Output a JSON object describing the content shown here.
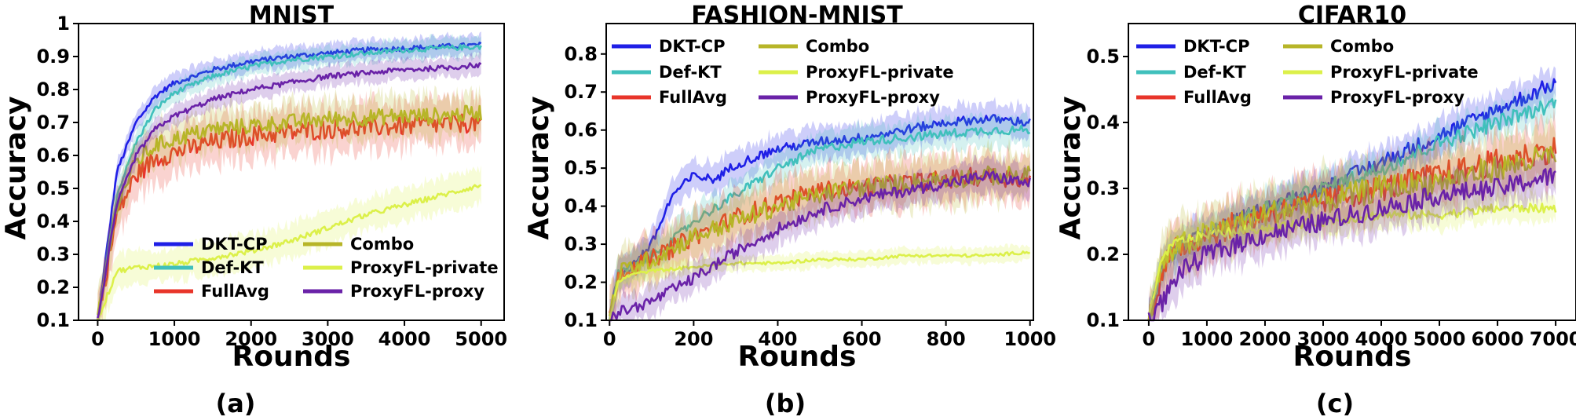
{
  "colors": {
    "DKT-CP": "#1f1fe6",
    "Def-KT": "#40c0bc",
    "FullAvg": "#e8352a",
    "Combo": "#b7b528",
    "ProxyFL-private": "#dcf04a",
    "ProxyFL-proxy": "#6a22a8"
  },
  "chart_data": [
    {
      "type": "line",
      "title": "MNIST",
      "subfigure_label": "(a)",
      "xlabel": "Rounds",
      "ylabel": "Accuracy",
      "xlim": [
        -250,
        5300
      ],
      "ylim": [
        0.1,
        1.0
      ],
      "xticks": [
        0,
        1000,
        2000,
        3000,
        4000,
        5000
      ],
      "yticks": [
        0.1,
        0.2,
        0.3,
        0.4,
        0.5,
        0.6,
        0.7,
        0.8,
        0.9,
        1.0
      ],
      "legend_position": "lower-right",
      "legend_columns": 2,
      "legend": [
        "DKT-CP",
        "Def-KT",
        "FullAvg",
        "Combo",
        "ProxyFL-private",
        "ProxyFL-proxy"
      ],
      "series": [
        {
          "name": "DKT-CP",
          "x": [
            0,
            250,
            500,
            750,
            1000,
            1500,
            2000,
            2500,
            3000,
            3500,
            4000,
            4500,
            5000
          ],
          "y": [
            0.1,
            0.55,
            0.7,
            0.78,
            0.82,
            0.86,
            0.885,
            0.9,
            0.91,
            0.92,
            0.925,
            0.93,
            0.935
          ],
          "noise": 0.008,
          "band": 0.03
        },
        {
          "name": "Def-KT",
          "x": [
            0,
            250,
            500,
            750,
            1000,
            1500,
            2000,
            2500,
            3000,
            3500,
            4000,
            4500,
            5000
          ],
          "y": [
            0.1,
            0.48,
            0.64,
            0.74,
            0.79,
            0.84,
            0.87,
            0.89,
            0.9,
            0.91,
            0.92,
            0.925,
            0.93
          ],
          "noise": 0.008,
          "band": 0.03
        },
        {
          "name": "FullAvg",
          "x": [
            0,
            250,
            500,
            750,
            1000,
            1500,
            2000,
            2500,
            3000,
            3500,
            4000,
            4500,
            5000
          ],
          "y": [
            0.1,
            0.42,
            0.54,
            0.59,
            0.61,
            0.64,
            0.66,
            0.67,
            0.68,
            0.685,
            0.69,
            0.695,
            0.7
          ],
          "noise": 0.03,
          "band": 0.07
        },
        {
          "name": "Combo",
          "x": [
            0,
            250,
            500,
            750,
            1000,
            1500,
            2000,
            2500,
            3000,
            3500,
            4000,
            4500,
            5000
          ],
          "y": [
            0.1,
            0.45,
            0.58,
            0.63,
            0.65,
            0.68,
            0.69,
            0.7,
            0.71,
            0.715,
            0.72,
            0.72,
            0.73
          ],
          "noise": 0.025,
          "band": 0.06
        },
        {
          "name": "ProxyFL-private",
          "x": [
            0,
            250,
            500,
            1000,
            1500,
            2000,
            2500,
            3000,
            3500,
            4000,
            4500,
            5000
          ],
          "y": [
            0.1,
            0.25,
            0.26,
            0.27,
            0.29,
            0.31,
            0.34,
            0.38,
            0.42,
            0.45,
            0.48,
            0.51
          ],
          "noise": 0.008,
          "band": 0.05
        },
        {
          "name": "ProxyFL-proxy",
          "x": [
            0,
            250,
            500,
            750,
            1000,
            1500,
            2000,
            2500,
            3000,
            3500,
            4000,
            4500,
            5000
          ],
          "y": [
            0.1,
            0.45,
            0.6,
            0.68,
            0.72,
            0.77,
            0.8,
            0.82,
            0.84,
            0.85,
            0.86,
            0.865,
            0.875
          ],
          "noise": 0.008,
          "band": 0.03
        }
      ]
    },
    {
      "type": "line",
      "title": "FASHION-MNIST",
      "subfigure_label": "(b)",
      "xlabel": "Rounds",
      "ylabel": "Accuracy",
      "xlim": [
        -8,
        1008
      ],
      "ylim": [
        0.1,
        0.88
      ],
      "xticks": [
        0,
        200,
        400,
        600,
        800,
        1000
      ],
      "yticks": [
        0.1,
        0.2,
        0.3,
        0.4,
        0.5,
        0.6,
        0.7,
        0.8
      ],
      "legend_position": "top-left",
      "legend_columns": 2,
      "legend": [
        "DKT-CP",
        "Def-KT",
        "FullAvg",
        "Combo",
        "ProxyFL-private",
        "ProxyFL-proxy"
      ],
      "series": [
        {
          "name": "DKT-CP",
          "x": [
            0,
            20,
            50,
            100,
            150,
            200,
            250,
            300,
            400,
            500,
            600,
            700,
            800,
            900,
            1000
          ],
          "y": [
            0.1,
            0.22,
            0.24,
            0.3,
            0.43,
            0.48,
            0.47,
            0.51,
            0.55,
            0.57,
            0.58,
            0.6,
            0.62,
            0.63,
            0.62
          ],
          "noise": 0.012,
          "band": 0.04
        },
        {
          "name": "Def-KT",
          "x": [
            0,
            20,
            50,
            100,
            150,
            200,
            300,
            400,
            500,
            600,
            700,
            800,
            900,
            1000
          ],
          "y": [
            0.1,
            0.22,
            0.24,
            0.27,
            0.31,
            0.36,
            0.43,
            0.5,
            0.55,
            0.57,
            0.58,
            0.59,
            0.6,
            0.6
          ],
          "noise": 0.012,
          "band": 0.04
        },
        {
          "name": "FullAvg",
          "x": [
            0,
            20,
            50,
            100,
            150,
            200,
            300,
            400,
            500,
            600,
            700,
            800,
            900,
            1000
          ],
          "y": [
            0.1,
            0.22,
            0.24,
            0.26,
            0.29,
            0.32,
            0.37,
            0.41,
            0.44,
            0.45,
            0.46,
            0.47,
            0.48,
            0.47
          ],
          "noise": 0.025,
          "band": 0.06
        },
        {
          "name": "Combo",
          "x": [
            0,
            20,
            50,
            100,
            150,
            200,
            300,
            400,
            500,
            600,
            700,
            800,
            900,
            1000
          ],
          "y": [
            0.1,
            0.22,
            0.24,
            0.26,
            0.29,
            0.32,
            0.36,
            0.4,
            0.43,
            0.45,
            0.46,
            0.47,
            0.48,
            0.48
          ],
          "noise": 0.025,
          "band": 0.06
        },
        {
          "name": "ProxyFL-private",
          "x": [
            0,
            20,
            50,
            100,
            200,
            300,
            400,
            500,
            600,
            700,
            800,
            900,
            1000
          ],
          "y": [
            0.1,
            0.2,
            0.22,
            0.23,
            0.24,
            0.25,
            0.25,
            0.26,
            0.26,
            0.27,
            0.27,
            0.27,
            0.28
          ],
          "noise": 0.004,
          "band": 0.02
        },
        {
          "name": "ProxyFL-proxy",
          "x": [
            0,
            20,
            50,
            100,
            150,
            200,
            300,
            400,
            500,
            600,
            700,
            800,
            900,
            1000
          ],
          "y": [
            0.1,
            0.12,
            0.13,
            0.15,
            0.18,
            0.21,
            0.28,
            0.34,
            0.39,
            0.42,
            0.44,
            0.46,
            0.48,
            0.46
          ],
          "noise": 0.015,
          "band": 0.04
        }
      ]
    },
    {
      "type": "line",
      "title": "CIFAR10",
      "subfigure_label": "(c)",
      "xlabel": "Rounds",
      "ylabel": "Accuracy",
      "xlim": [
        -350,
        7350
      ],
      "ylim": [
        0.1,
        0.55
      ],
      "xticks": [
        0,
        1000,
        2000,
        3000,
        4000,
        5000,
        6000,
        7000
      ],
      "yticks": [
        0.1,
        0.2,
        0.3,
        0.4,
        0.5
      ],
      "legend_position": "top-left",
      "legend_columns": 2,
      "legend": [
        "DKT-CP",
        "Def-KT",
        "FullAvg",
        "Combo",
        "ProxyFL-private",
        "ProxyFL-proxy"
      ],
      "series": [
        {
          "name": "DKT-CP",
          "x": [
            0,
            250,
            500,
            1000,
            2000,
            3000,
            4000,
            5000,
            6000,
            7000
          ],
          "y": [
            0.1,
            0.19,
            0.21,
            0.23,
            0.27,
            0.3,
            0.34,
            0.38,
            0.42,
            0.46
          ],
          "noise": 0.012,
          "band": 0.025
        },
        {
          "name": "Def-KT",
          "x": [
            0,
            250,
            500,
            1000,
            2000,
            3000,
            4000,
            5000,
            6000,
            7000
          ],
          "y": [
            0.1,
            0.19,
            0.21,
            0.23,
            0.27,
            0.3,
            0.33,
            0.37,
            0.4,
            0.43
          ],
          "noise": 0.012,
          "band": 0.025
        },
        {
          "name": "FullAvg",
          "x": [
            0,
            250,
            500,
            1000,
            2000,
            3000,
            4000,
            5000,
            6000,
            7000
          ],
          "y": [
            0.1,
            0.18,
            0.21,
            0.23,
            0.26,
            0.28,
            0.3,
            0.32,
            0.34,
            0.36
          ],
          "noise": 0.02,
          "band": 0.04
        },
        {
          "name": "Combo",
          "x": [
            0,
            250,
            500,
            1000,
            2000,
            3000,
            4000,
            5000,
            6000,
            7000
          ],
          "y": [
            0.1,
            0.19,
            0.21,
            0.23,
            0.26,
            0.28,
            0.3,
            0.31,
            0.33,
            0.35
          ],
          "noise": 0.02,
          "band": 0.04
        },
        {
          "name": "ProxyFL-private",
          "x": [
            0,
            250,
            500,
            1000,
            2000,
            3000,
            4000,
            5000,
            6000,
            7000
          ],
          "y": [
            0.1,
            0.2,
            0.22,
            0.23,
            0.24,
            0.25,
            0.26,
            0.26,
            0.27,
            0.27
          ],
          "noise": 0.007,
          "band": 0.02
        },
        {
          "name": "ProxyFL-proxy",
          "x": [
            0,
            250,
            500,
            1000,
            2000,
            3000,
            4000,
            5000,
            6000,
            7000
          ],
          "y": [
            0.1,
            0.13,
            0.17,
            0.2,
            0.23,
            0.25,
            0.27,
            0.29,
            0.3,
            0.32
          ],
          "noise": 0.015,
          "band": 0.03
        }
      ]
    }
  ]
}
